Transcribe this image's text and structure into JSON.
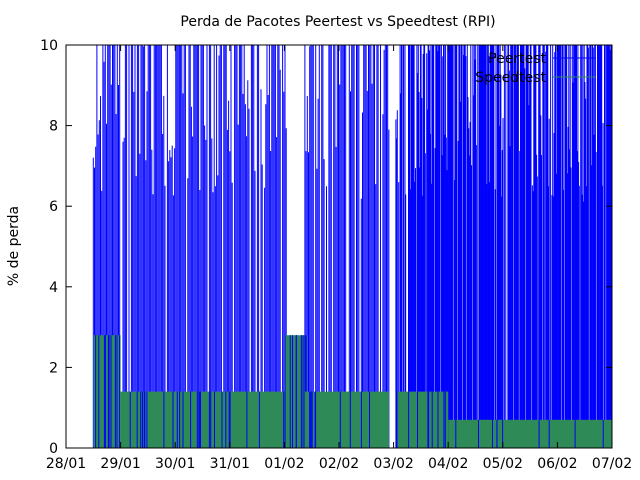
{
  "chart_data": {
    "type": "bar",
    "title": "Perda de Pacotes Peertest vs Speedtest (RPI)",
    "xlabel": "",
    "ylabel": "% de perda",
    "xlim": [
      "28/01",
      "07/02"
    ],
    "ylim": [
      0,
      10
    ],
    "x_tick_labels": [
      "28/01",
      "29/01",
      "30/01",
      "31/01",
      "01/02",
      "02/02",
      "03/02",
      "04/02",
      "05/02",
      "06/02",
      "07/02"
    ],
    "y_tick_labels": [
      "0",
      "2",
      "4",
      "6",
      "8",
      "10"
    ],
    "legend": "top-right",
    "grid": false,
    "series": [
      {
        "name": "Peertest",
        "color": "#0000ff",
        "description": "dense spikes, values ranging 0 to above 10",
        "segments": [
          {
            "from": "28/01 12:00",
            "to": "29/01 00:00",
            "typical_max": 10,
            "spread": "high"
          },
          {
            "from": "29/01 00:00",
            "to": "01/02 01:00",
            "typical_max": 10,
            "spread": "high"
          },
          {
            "from": "01/02 09:00",
            "to": "02/02 22:00",
            "typical_max": 10,
            "spread": "high"
          },
          {
            "from": "03/02 01:00",
            "to": "07/02 02:00",
            "typical_max": 10,
            "spread": "very high"
          }
        ]
      },
      {
        "name": "Speedtest",
        "color": "#2e8b57",
        "description": "stepped loss levels",
        "segments": [
          {
            "from": "28/01 12:00",
            "to": "29/01 00:00",
            "level": 2.8
          },
          {
            "from": "29/01 00:00",
            "to": "30/01 00:00",
            "level": 1.4
          },
          {
            "from": "30/01 00:00",
            "to": "30/01 12:00",
            "level": 1.4
          },
          {
            "from": "30/01 12:00",
            "to": "01/02 01:00",
            "level": 1.4
          },
          {
            "from": "01/02 00:00",
            "to": "01/02 10:00",
            "level": 2.8
          },
          {
            "from": "01/02 09:00",
            "to": "02/02 22:00",
            "level": 1.4
          },
          {
            "from": "03/02 01:00",
            "to": "04/02 00:00",
            "level": 1.4
          },
          {
            "from": "04/02 00:00",
            "to": "07/02 02:00",
            "level": 0.7
          }
        ]
      }
    ]
  }
}
